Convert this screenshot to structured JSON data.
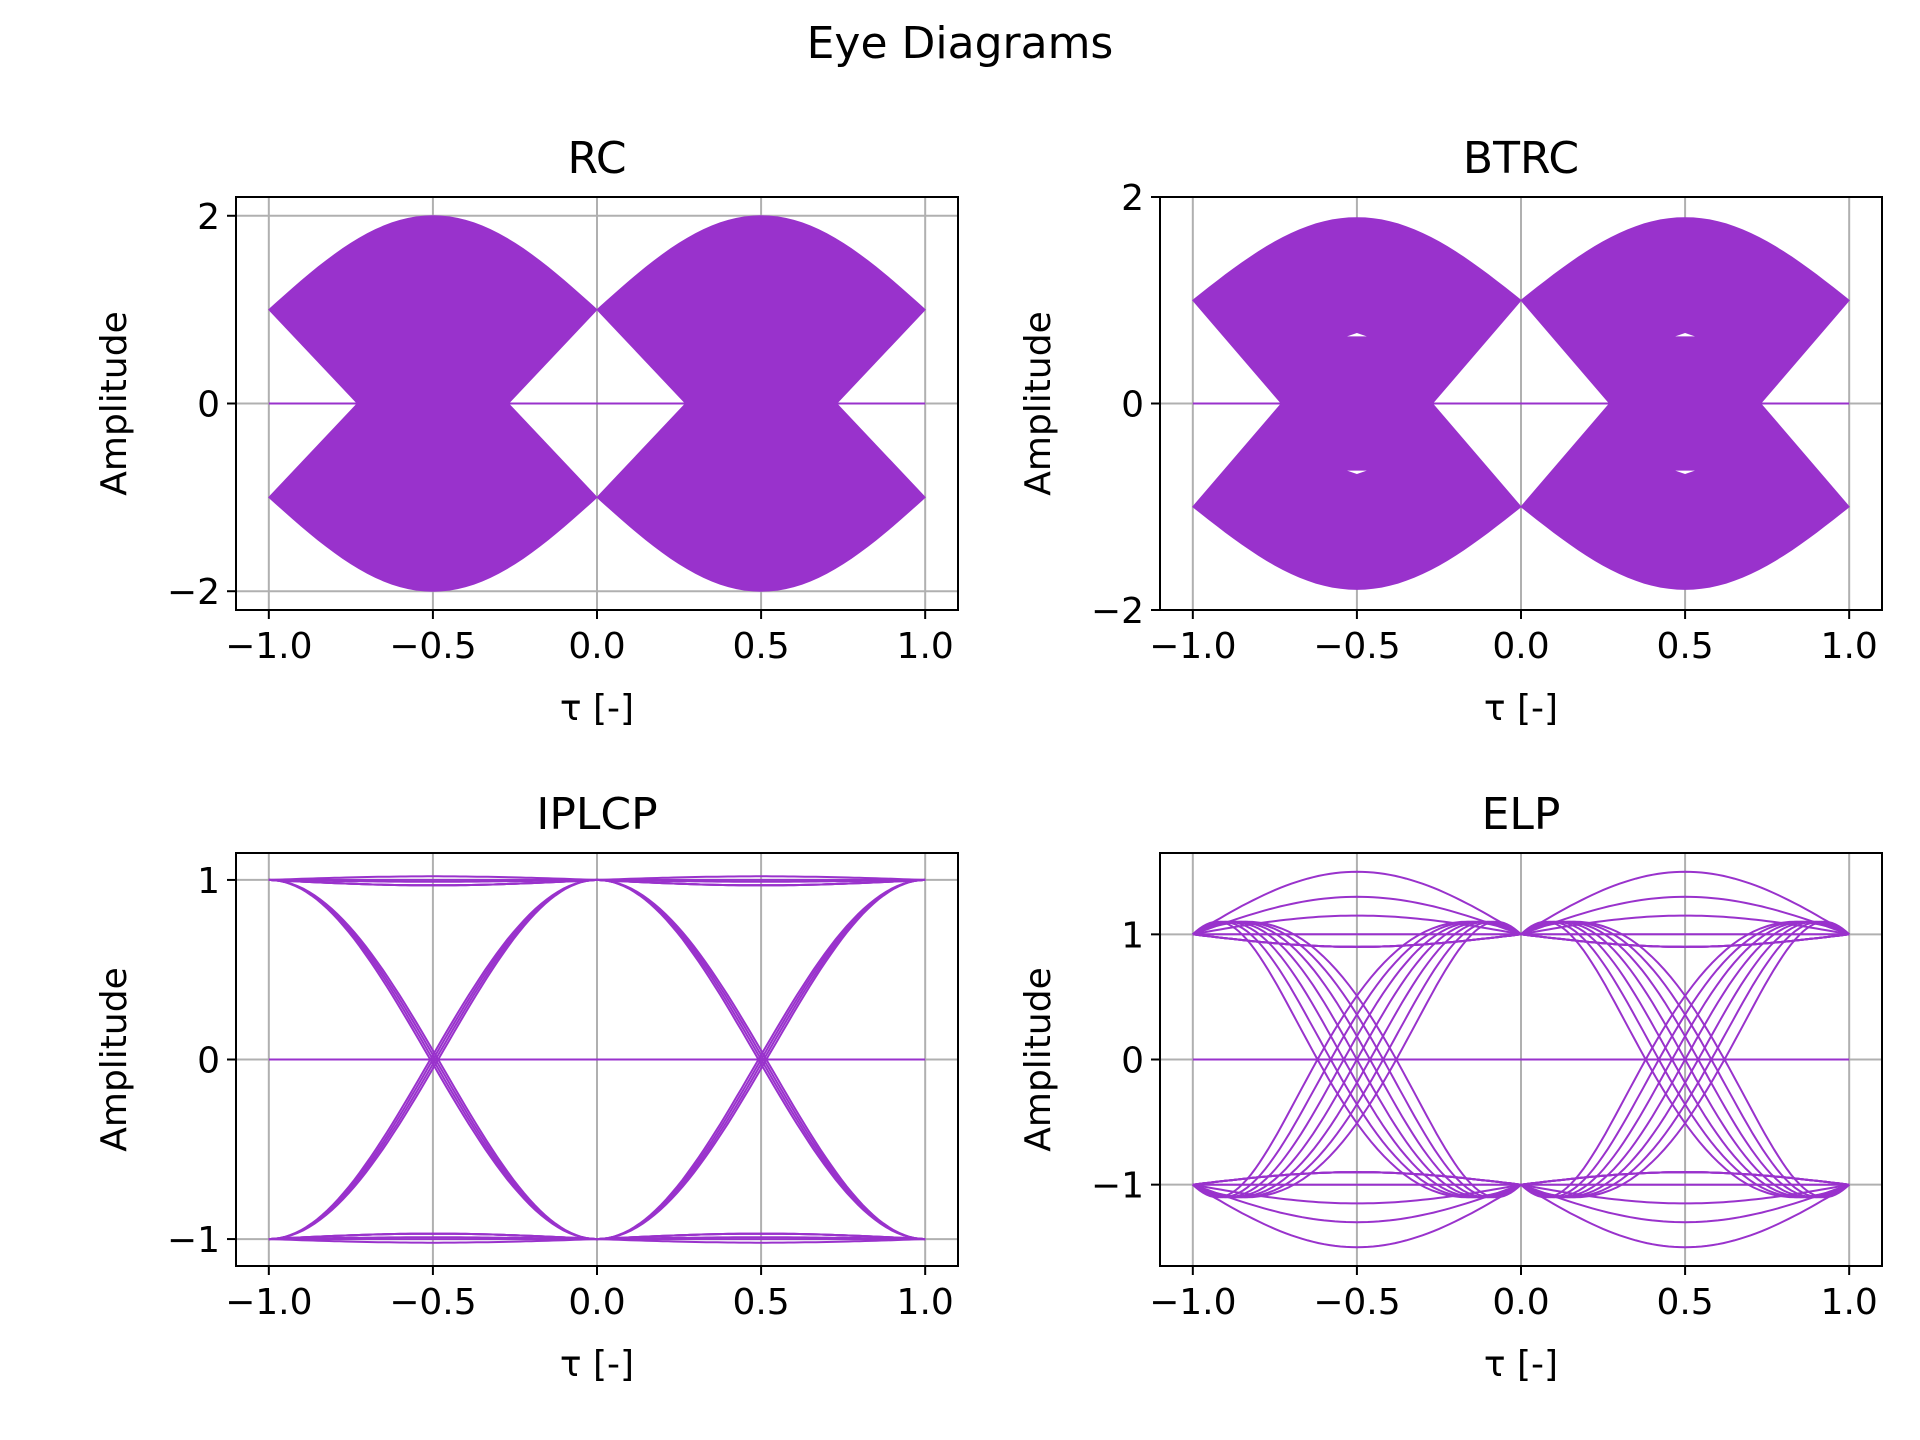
{
  "figure": {
    "title": "Eye Diagrams"
  },
  "colors": {
    "trace": "#9932CC",
    "grid": "#b0b0b0",
    "axes": "#000000"
  },
  "chart_data": [
    {
      "type": "line",
      "title": "RC",
      "xlabel": "τ [-]",
      "ylabel": "Amplitude",
      "xlim": [
        -1.1,
        1.1
      ],
      "ylim": [
        -2.2,
        2.2
      ],
      "xticks": [
        -1.0,
        -0.5,
        0.0,
        0.5,
        1.0
      ],
      "xtick_labels": [
        "−1.0",
        "−0.5",
        "0.0",
        "0.5",
        "1.0"
      ],
      "yticks": [
        -2,
        0,
        2
      ],
      "ytick_labels": [
        "−2",
        "0",
        "2"
      ],
      "grid": true,
      "eye": {
        "center_levels": [
          1,
          -1
        ],
        "peak": 2.0,
        "inner": 0.0,
        "fill": "solid"
      }
    },
    {
      "type": "line",
      "title": "BTRC",
      "xlabel": "τ [-]",
      "ylabel": "Amplitude",
      "xlim": [
        -1.1,
        1.1
      ],
      "ylim": [
        -2.0,
        2.0
      ],
      "xticks": [
        -1.0,
        -0.5,
        0.0,
        0.5,
        1.0
      ],
      "xtick_labels": [
        "−1.0",
        "−0.5",
        "0.0",
        "0.5",
        "1.0"
      ],
      "yticks": [
        -2,
        0,
        2
      ],
      "ytick_labels": [
        "−2",
        "0",
        "2"
      ],
      "grid": true,
      "eye": {
        "center_levels": [
          1,
          -1
        ],
        "peak": 1.8,
        "inner": 0.0,
        "fill": "solid"
      }
    },
    {
      "type": "line",
      "title": "IPLCP",
      "xlabel": "τ [-]",
      "ylabel": "Amplitude",
      "xlim": [
        -1.1,
        1.1
      ],
      "ylim": [
        -1.15,
        1.15
      ],
      "xticks": [
        -1.0,
        -0.5,
        0.0,
        0.5,
        1.0
      ],
      "xtick_labels": [
        "−1.0",
        "−0.5",
        "0.0",
        "0.5",
        "1.0"
      ],
      "yticks": [
        -1,
        0,
        1
      ],
      "ytick_labels": [
        "−1",
        "0",
        "1"
      ],
      "grid": true,
      "eye": {
        "center_levels": [
          1,
          -1
        ],
        "peak": 1.03,
        "inner": 0.97,
        "fill": "lines"
      }
    },
    {
      "type": "line",
      "title": "ELP",
      "xlabel": "τ [-]",
      "ylabel": "Amplitude",
      "xlim": [
        -1.1,
        1.1
      ],
      "ylim": [
        -1.65,
        1.65
      ],
      "xticks": [
        -1.0,
        -0.5,
        0.0,
        0.5,
        1.0
      ],
      "xtick_labels": [
        "−1.0",
        "−0.5",
        "0.0",
        "0.5",
        "1.0"
      ],
      "yticks": [
        -1,
        0,
        1
      ],
      "ytick_labels": [
        "−1",
        "0",
        "1"
      ],
      "grid": true,
      "eye": {
        "center_levels": [
          1,
          -1
        ],
        "peak": 1.5,
        "inner": 0.9,
        "fill": "lines"
      }
    }
  ]
}
